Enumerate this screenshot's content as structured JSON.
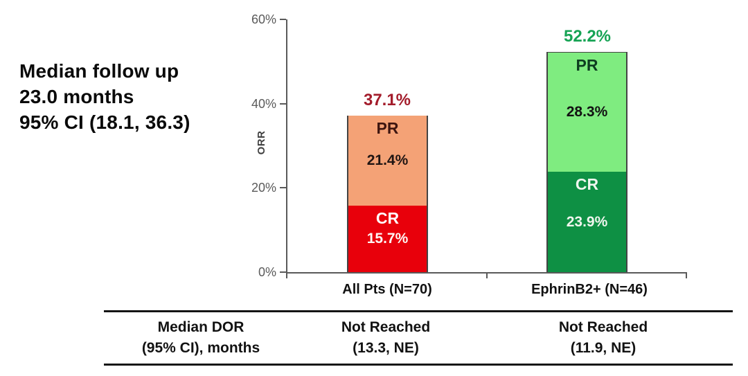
{
  "annotation": {
    "lines": [
      "Median follow up",
      "23.0 months",
      "95% CI (18.1, 36.3)"
    ]
  },
  "chart_data": {
    "type": "bar",
    "stacked": true,
    "title": "",
    "xlabel": "",
    "ylabel": "ORR",
    "ylim": [
      0,
      60
    ],
    "grid": false,
    "yticks": [
      {
        "value": 0,
        "label": "0%"
      },
      {
        "value": 20,
        "label": "20%"
      },
      {
        "value": 40,
        "label": "40%"
      },
      {
        "value": 60,
        "label": "60%"
      }
    ],
    "categories": [
      "All Pts (N=70)",
      "EphrinB2+ (N=46)"
    ],
    "series": [
      {
        "name": "CR",
        "values": [
          15.7,
          23.9
        ]
      },
      {
        "name": "PR",
        "values": [
          21.4,
          28.3
        ]
      }
    ],
    "bars": [
      {
        "category": "All Pts (N=70)",
        "total": 37.1,
        "total_label": "37.1%",
        "total_color": "#A31C2B",
        "segments": [
          {
            "name": "CR",
            "value": 15.7,
            "label": "15.7%",
            "fill": "#E8000B",
            "name_color": "#FFFFFF",
            "value_color": "#FDF6F4"
          },
          {
            "name": "PR",
            "value": 21.4,
            "label": "21.4%",
            "fill": "#F4A276",
            "name_color": "#3D1510",
            "value_color": "#201513"
          }
        ]
      },
      {
        "category": "EphrinB2+ (N=46)",
        "total": 52.2,
        "total_label": "52.2%",
        "total_color": "#16A354",
        "segments": [
          {
            "name": "CR",
            "value": 23.9,
            "label": "23.9%",
            "fill": "#0E9044",
            "name_color": "#EFF6EE",
            "value_color": "#EFF6EE"
          },
          {
            "name": "PR",
            "value": 28.3,
            "label": "28.3%",
            "fill": "#7FEC80",
            "name_color": "#0D3D20",
            "value_color": "#121212"
          }
        ]
      }
    ]
  },
  "table": {
    "rows": [
      [
        "Median DOR",
        "Not Reached",
        "Not Reached"
      ],
      [
        "(95% CI), months",
        "(13.3, NE)",
        "(11.9, NE)"
      ]
    ]
  }
}
